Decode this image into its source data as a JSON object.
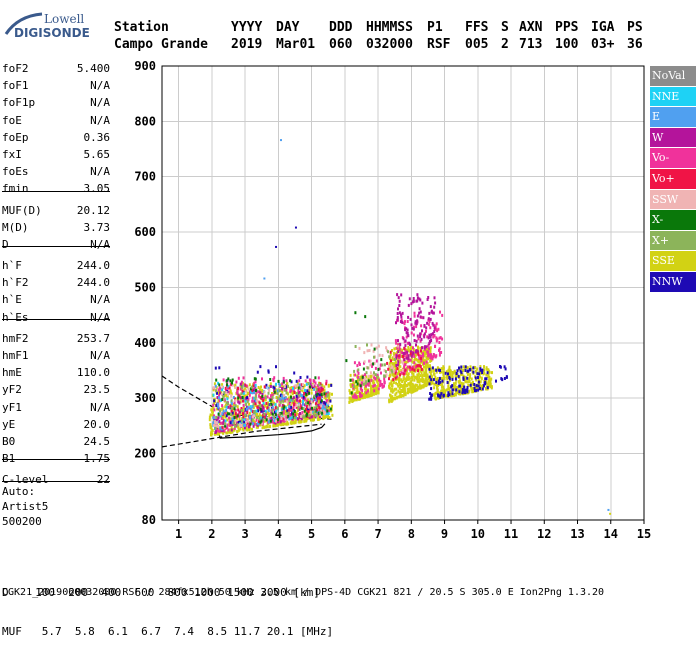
{
  "logo": {
    "brand": "Lowell",
    "product": "DIGISONDE"
  },
  "header": {
    "labels": [
      "Station",
      "YYYY",
      "DAY",
      "DDD",
      "HHMMSS",
      "P1",
      "FFS",
      "S",
      "AXN",
      "PPS",
      "IGA",
      "PS"
    ],
    "values": [
      "Campo Grande",
      "2019",
      "Mar01",
      "060",
      "032000",
      "RSF",
      "005",
      "2",
      "713",
      "100",
      "03+",
      "36"
    ]
  },
  "params": {
    "group1": [
      {
        "label": "foF2",
        "value": "5.400"
      },
      {
        "label": "foF1",
        "value": "N/A"
      },
      {
        "label": "foF1p",
        "value": "N/A"
      },
      {
        "label": "foE",
        "value": "N/A"
      },
      {
        "label": "foEp",
        "value": "0.36"
      },
      {
        "label": "fxI",
        "value": "5.65"
      },
      {
        "label": "foEs",
        "value": "N/A"
      },
      {
        "label": "fmin",
        "value": "3.05"
      }
    ],
    "group2": [
      {
        "label": "MUF(D)",
        "value": "20.12"
      },
      {
        "label": "M(D)",
        "value": "3.73"
      },
      {
        "label": "D",
        "value": "N/A"
      }
    ],
    "group3": [
      {
        "label": "h`F",
        "value": "244.0"
      },
      {
        "label": "h`F2",
        "value": "244.0"
      },
      {
        "label": "h`E",
        "value": "N/A"
      },
      {
        "label": "h`Es",
        "value": "N/A"
      }
    ],
    "group4": [
      {
        "label": "hmF2",
        "value": "253.7"
      },
      {
        "label": "hmF1",
        "value": "N/A"
      },
      {
        "label": "hmE",
        "value": "110.0"
      },
      {
        "label": "yF2",
        "value": "23.5"
      },
      {
        "label": "yF1",
        "value": "N/A"
      },
      {
        "label": "yE",
        "value": "20.0"
      },
      {
        "label": "B0",
        "value": "24.5"
      },
      {
        "label": "B1",
        "value": "1.75"
      }
    ],
    "group5": [
      {
        "label": "C-level",
        "value": "22"
      }
    ]
  },
  "auto": {
    "line1": "Auto:",
    "line2": "Artist5",
    "line3": "500200"
  },
  "legend": [
    {
      "label": "NoVal",
      "color": "#8c8c8c"
    },
    {
      "label": "NNE",
      "color": "#1ed2f5"
    },
    {
      "label": "E",
      "color": "#50a0f0"
    },
    {
      "label": "W",
      "color": "#b4149b"
    },
    {
      "label": "Vo-",
      "color": "#f0329b"
    },
    {
      "label": "Vo+",
      "color": "#f01446"
    },
    {
      "label": "SSW",
      "color": "#f0b4b4"
    },
    {
      "label": "X-",
      "color": "#0a780a"
    },
    {
      "label": "X+",
      "color": "#8cb45a"
    },
    {
      "label": "SSE",
      "color": "#d2d214"
    },
    {
      "label": "NNW",
      "color": "#1e0ab4"
    }
  ],
  "bottom": {
    "row1": "D    100  200  400  600  800 1000 1500 3000 [km]",
    "row2": "MUF   5.7  5.8  6.1  6.7  7.4  8.5 11.7 20.1 [MHz]",
    "footer": "CGK21_2019060032000.RSF / 284fx512h 50 kHz 2.5 km / DPS-4D CGK21 821 / 20.5 S 305.0 E Ion2Png 1.3.20"
  },
  "chart_data": {
    "type": "scatter",
    "xlim": [
      0.5,
      15
    ],
    "ylim": [
      80,
      900
    ],
    "xticks": [
      1,
      2,
      3,
      4,
      5,
      6,
      7,
      8,
      9,
      10,
      11,
      12,
      13,
      14,
      15
    ],
    "yticks": [
      80,
      200,
      300,
      400,
      500,
      600,
      700,
      800,
      900
    ],
    "grid": true,
    "legend_position": "right",
    "series": [
      {
        "name": "SSE",
        "color": "#d2d214",
        "clusters": [
          {
            "x": [
              1.9,
              5.6
            ],
            "y": [
              235,
              330
            ],
            "n": 700
          },
          {
            "x": [
              6.1,
              7.0
            ],
            "y": [
              295,
              345
            ],
            "n": 220
          },
          {
            "x": [
              7.3,
              8.6
            ],
            "y": [
              295,
              395
            ],
            "n": 500
          },
          {
            "x": [
              8.6,
              10.4
            ],
            "y": [
              300,
              360
            ],
            "n": 320
          }
        ]
      },
      {
        "name": "Vo-",
        "color": "#f0329b",
        "clusters": [
          {
            "x": [
              2.0,
              5.5
            ],
            "y": [
              240,
              340
            ],
            "n": 260
          },
          {
            "x": [
              6.2,
              7.2
            ],
            "y": [
              300,
              370
            ],
            "n": 70
          },
          {
            "x": [
              7.5,
              8.9
            ],
            "y": [
              340,
              460
            ],
            "n": 140
          }
        ]
      },
      {
        "name": "W",
        "color": "#b4149b",
        "clusters": [
          {
            "x": [
              2.0,
              5.4
            ],
            "y": [
              240,
              330
            ],
            "n": 130
          },
          {
            "x": [
              7.5,
              8.7
            ],
            "y": [
              360,
              490
            ],
            "n": 130
          }
        ]
      },
      {
        "name": "NNW",
        "color": "#1e0ab4",
        "clusters": [
          {
            "x": [
              2.0,
              5.6
            ],
            "y": [
              250,
              360
            ],
            "n": 90
          },
          {
            "x": [
              8.5,
              10.3
            ],
            "y": [
              300,
              360
            ],
            "n": 110
          },
          {
            "x": [
              10.5,
              10.9
            ],
            "y": [
              330,
              360
            ],
            "n": 10
          }
        ]
      },
      {
        "name": "NNE",
        "color": "#1ed2f5",
        "clusters": [
          {
            "x": [
              2.0,
              5.5
            ],
            "y": [
              245,
              330
            ],
            "n": 80
          }
        ]
      },
      {
        "name": "E",
        "color": "#50a0f0",
        "clusters": [
          {
            "x": [
              2.0,
              5.5
            ],
            "y": [
              245,
              330
            ],
            "n": 80
          }
        ]
      },
      {
        "name": "Vo+",
        "color": "#f01446",
        "clusters": [
          {
            "x": [
              2.0,
              5.5
            ],
            "y": [
              245,
              330
            ],
            "n": 80
          },
          {
            "x": [
              7.2,
              8.3
            ],
            "y": [
              330,
              400
            ],
            "n": 30
          }
        ]
      },
      {
        "name": "SSW",
        "color": "#f0b4b4",
        "clusters": [
          {
            "x": [
              2.0,
              5.5
            ],
            "y": [
              245,
              330
            ],
            "n": 80
          },
          {
            "x": [
              6.4,
              7.8
            ],
            "y": [
              330,
              400
            ],
            "n": 40
          }
        ]
      },
      {
        "name": "X-",
        "color": "#0a780a",
        "clusters": [
          {
            "x": [
              2.0,
              5.6
            ],
            "y": [
              245,
              340
            ],
            "n": 70
          },
          {
            "x": [
              6.0,
              7.2
            ],
            "y": [
              300,
              470
            ],
            "n": 15
          }
        ]
      },
      {
        "name": "X+",
        "color": "#8cb45a",
        "clusters": [
          {
            "x": [
              2.0,
              5.5
            ],
            "y": [
              245,
              330
            ],
            "n": 80
          },
          {
            "x": [
              6.2,
              7.5
            ],
            "y": [
              320,
              400
            ],
            "n": 25
          }
        ]
      }
    ],
    "outliers": [
      {
        "x": 4.05,
        "y": 768,
        "series": "E"
      },
      {
        "x": 4.5,
        "y": 610,
        "series": "NNW"
      },
      {
        "x": 3.9,
        "y": 575,
        "series": "NNW"
      },
      {
        "x": 3.55,
        "y": 518,
        "series": "E"
      },
      {
        "x": 13.9,
        "y": 100,
        "series": "E"
      },
      {
        "x": 13.95,
        "y": 93,
        "series": "SSE"
      }
    ],
    "profile_curve": {
      "x": [
        5.4,
        5.3,
        5.0,
        4.5,
        4.0,
        3.5,
        3.0,
        2.6,
        2.25,
        2.2
      ],
      "y": [
        253.7,
        247,
        241,
        237,
        234,
        232,
        230,
        229,
        228,
        240
      ]
    },
    "profile_upper": {
      "x": [
        0.5,
        1.0,
        2.0,
        2.5,
        3.2,
        4.2,
        5.0,
        5.6
      ],
      "y": [
        340,
        320,
        285,
        270,
        268,
        264,
        265,
        262
      ]
    },
    "profile_lower": {
      "x": [
        0.5,
        1.5,
        2.5,
        3.3,
        4.2,
        5.3
      ],
      "y": [
        212,
        222,
        232,
        240,
        246,
        253
      ]
    }
  }
}
